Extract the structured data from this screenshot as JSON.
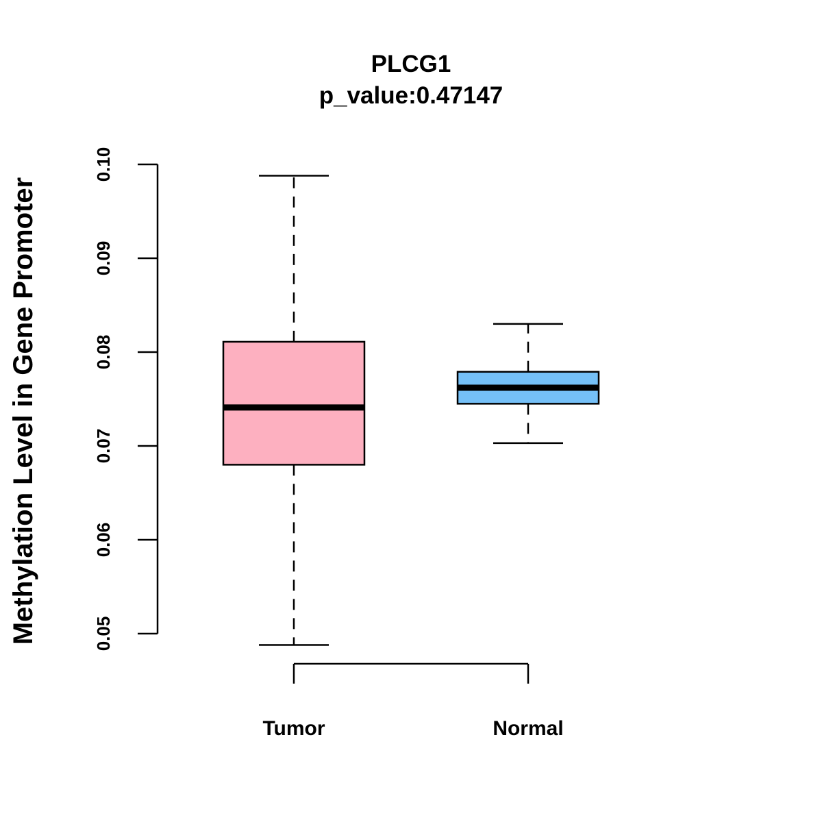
{
  "chart_data": {
    "type": "boxplot",
    "title": "PLCG1",
    "subtitle": "p_value:0.47147",
    "xlabel": "",
    "ylabel": "Methylation Level in Gene Promoter",
    "ylim": [
      0.05,
      0.1
    ],
    "yticks": [
      0.05,
      0.06,
      0.07,
      0.08,
      0.09,
      0.1
    ],
    "ytick_labels": [
      "0.05",
      "0.06",
      "0.07",
      "0.08",
      "0.09",
      "0.10"
    ],
    "categories": [
      "Tumor",
      "Normal"
    ],
    "groups": [
      {
        "name": "Tumor",
        "color": "#fdb0c0",
        "whisker_low": 0.0488,
        "q1": 0.068,
        "median": 0.0741,
        "q3": 0.0811,
        "whisker_high": 0.0988
      },
      {
        "name": "Normal",
        "color": "#75c0f7",
        "whisker_low": 0.0703,
        "q1": 0.0745,
        "median": 0.0762,
        "q3": 0.0779,
        "whisker_high": 0.083
      }
    ],
    "grid": false,
    "legend": "none"
  }
}
